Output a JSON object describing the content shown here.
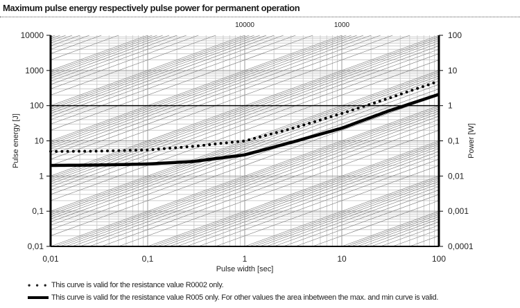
{
  "title": "Maximum pulse energy respectively pulse power for permanent operation",
  "chart_data": {
    "type": "line",
    "title": "Maximum pulse energy respectively pulse power for permanent operation",
    "xlabel": "Pulse width [sec]",
    "ylabel": "Pulse energy [J]",
    "y2label": "Power [W]",
    "xscale": "log",
    "yscale": "log",
    "xlim": [
      0.01,
      100
    ],
    "ylim": [
      0.01,
      10000
    ],
    "y2lim": [
      0.0001,
      100
    ],
    "grid": true,
    "x_ticks": [
      "0,01",
      "0,1",
      "1",
      "10",
      "100"
    ],
    "y_ticks": [
      "0,01",
      "0,1",
      "1",
      "10",
      "100",
      "1000",
      "10000"
    ],
    "y2_ticks": [
      "0,0001",
      "0,001",
      "0,01",
      "0,1",
      "1",
      "10",
      "100"
    ],
    "top_labels": [
      {
        "text": "10000",
        "x": 1
      },
      {
        "text": "1000",
        "x": 10
      }
    ],
    "series": [
      {
        "style": "dotted",
        "x": [
          0.01,
          0.03,
          0.1,
          0.3,
          1,
          3,
          10,
          30,
          100
        ],
        "y": [
          5,
          5.1,
          5.5,
          7,
          10,
          22,
          60,
          160,
          500
        ]
      },
      {
        "style": "solid",
        "x": [
          0.01,
          0.03,
          0.1,
          0.3,
          1,
          3,
          10,
          30,
          100
        ],
        "y": [
          2,
          2.05,
          2.2,
          2.6,
          4,
          9,
          23,
          70,
          210
        ]
      }
    ]
  },
  "legend": [
    {
      "marker": "• • •",
      "text": "This curve is valid for the resistance value R0002 only."
    },
    {
      "marker": "",
      "text": "This curve is valid for the resistance value R005 only. For other values the area inbetween the max. and min curve is valid."
    }
  ]
}
